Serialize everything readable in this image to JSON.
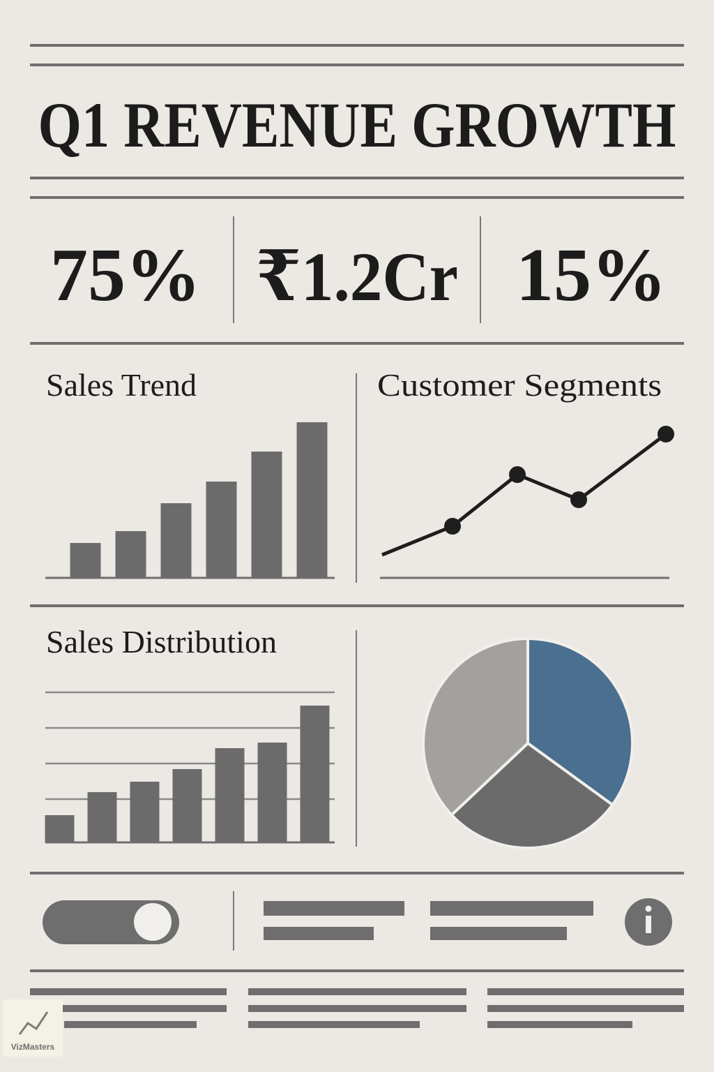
{
  "title": "Q1 REVENUE GROWTH",
  "kpis": [
    "75%",
    "₹1.2Cr",
    "15%"
  ],
  "watermark": "VizMasters",
  "chart_data": [
    {
      "type": "bar",
      "title": "Sales Trend",
      "values": [
        50,
        67,
        107,
        138,
        181,
        223
      ],
      "color": "#6b6b6b",
      "ylim": [
        0,
        230
      ]
    },
    {
      "type": "line",
      "title": "Customer Segments",
      "x": [
        0,
        101,
        194,
        282,
        407
      ],
      "values": [
        33,
        74,
        148,
        112,
        206
      ],
      "markers": [
        false,
        true,
        true,
        true,
        true
      ],
      "color": "#1e1e1e",
      "xlim": [
        0,
        412
      ],
      "ylim": [
        0,
        230
      ]
    },
    {
      "type": "bar",
      "title": "Sales Distribution",
      "values": [
        39,
        72,
        87,
        105,
        135,
        143,
        196
      ],
      "color": "#6b6b6b",
      "ylim": [
        0,
        215
      ],
      "yticks": [
        62,
        113,
        164,
        215
      ],
      "grid": true
    },
    {
      "type": "pie",
      "values": [
        35,
        28,
        37
      ],
      "colors": [
        "#4b6f8e",
        "#6b6b6b",
        "#a3a19d"
      ]
    }
  ]
}
